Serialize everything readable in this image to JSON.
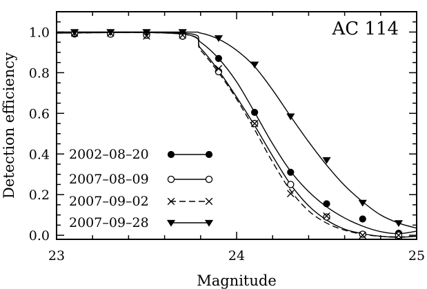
{
  "chart_data": {
    "type": "line",
    "title": "",
    "annotation": "AC 114",
    "xlabel": "Magnitude",
    "ylabel": "Detection efficiency",
    "xlim": [
      23,
      25
    ],
    "ylim": [
      -0.02,
      1.1
    ],
    "xticks": [
      23,
      24,
      25
    ],
    "xtick_labels": [
      "23",
      "24",
      "25"
    ],
    "yticks": [
      0.0,
      0.2,
      0.4,
      0.6,
      0.8,
      1.0
    ],
    "ytick_labels": [
      "0.0",
      "0.2",
      "0.4",
      "0.6",
      "0.8",
      "1.0"
    ],
    "legend_position": "bottom-left",
    "series": [
      {
        "name": "2002–08–20",
        "marker": "filled-circle",
        "dash": "solid",
        "points": [
          [
            23.1,
            0.99
          ],
          [
            23.3,
            0.99
          ],
          [
            23.5,
            0.99
          ],
          [
            23.7,
            0.99
          ],
          [
            23.9,
            0.87
          ],
          [
            24.1,
            0.605
          ],
          [
            24.3,
            0.31
          ],
          [
            24.5,
            0.155
          ],
          [
            24.7,
            0.08
          ],
          [
            24.9,
            0.01
          ]
        ],
        "curve": [
          [
            23.0,
            0.995
          ],
          [
            23.7,
            0.995
          ],
          [
            23.8,
            0.95
          ],
          [
            23.9,
            0.87
          ],
          [
            24.0,
            0.755
          ],
          [
            24.1,
            0.605
          ],
          [
            24.2,
            0.45
          ],
          [
            24.3,
            0.315
          ],
          [
            24.4,
            0.215
          ],
          [
            24.5,
            0.14
          ],
          [
            24.6,
            0.085
          ],
          [
            24.7,
            0.045
          ],
          [
            24.8,
            0.018
          ],
          [
            24.9,
            0.008
          ],
          [
            25.0,
            0.02
          ]
        ]
      },
      {
        "name": "2007–08–09",
        "marker": "open-circle",
        "dash": "solid",
        "points": [
          [
            23.1,
            0.995
          ],
          [
            23.3,
            0.99
          ],
          [
            23.5,
            0.985
          ],
          [
            23.7,
            0.98
          ],
          [
            23.9,
            0.805
          ],
          [
            24.1,
            0.55
          ],
          [
            24.3,
            0.25
          ],
          [
            24.5,
            0.09
          ],
          [
            24.7,
            0.005
          ],
          [
            24.9,
            0.0
          ]
        ],
        "curve": [
          [
            23.0,
            1.0
          ],
          [
            23.7,
            0.99
          ],
          [
            23.8,
            0.92
          ],
          [
            23.9,
            0.81
          ],
          [
            24.0,
            0.68
          ],
          [
            24.1,
            0.54
          ],
          [
            24.2,
            0.39
          ],
          [
            24.3,
            0.25
          ],
          [
            24.4,
            0.145
          ],
          [
            24.5,
            0.075
          ],
          [
            24.6,
            0.03
          ],
          [
            24.7,
            0.008
          ],
          [
            24.8,
            -0.005
          ],
          [
            24.9,
            -0.01
          ],
          [
            25.0,
            -0.005
          ]
        ]
      },
      {
        "name": "2007–09–02",
        "marker": "cross",
        "dash": "dashed",
        "points": [
          [
            23.1,
            0.995
          ],
          [
            23.3,
            0.995
          ],
          [
            23.5,
            0.98
          ],
          [
            23.7,
            0.985
          ],
          [
            23.9,
            0.82
          ],
          [
            24.1,
            0.55
          ],
          [
            24.3,
            0.205
          ],
          [
            24.5,
            0.095
          ],
          [
            24.7,
            0.0
          ],
          [
            24.9,
            0.0
          ]
        ],
        "curve": [
          [
            23.0,
            0.995
          ],
          [
            23.7,
            0.99
          ],
          [
            23.8,
            0.91
          ],
          [
            23.9,
            0.8
          ],
          [
            24.0,
            0.67
          ],
          [
            24.1,
            0.52
          ],
          [
            24.2,
            0.36
          ],
          [
            24.3,
            0.22
          ],
          [
            24.4,
            0.12
          ],
          [
            24.5,
            0.06
          ],
          [
            24.6,
            0.025
          ],
          [
            24.7,
            0.005
          ],
          [
            24.8,
            -0.005
          ],
          [
            24.9,
            -0.008
          ],
          [
            25.0,
            -0.005
          ]
        ]
      },
      {
        "name": "2007–09–28",
        "marker": "filled-triangle-down",
        "dash": "solid",
        "points": [
          [
            23.1,
            1.0
          ],
          [
            23.3,
            1.0
          ],
          [
            23.5,
            1.0
          ],
          [
            23.7,
            1.0
          ],
          [
            23.9,
            0.97
          ],
          [
            24.1,
            0.84
          ],
          [
            24.3,
            0.585
          ],
          [
            24.5,
            0.37
          ],
          [
            24.7,
            0.16
          ],
          [
            24.9,
            0.06
          ]
        ],
        "curve": [
          [
            23.0,
            1.0
          ],
          [
            23.7,
            1.0
          ],
          [
            23.8,
            0.995
          ],
          [
            23.9,
            0.965
          ],
          [
            24.0,
            0.91
          ],
          [
            24.1,
            0.83
          ],
          [
            24.2,
            0.715
          ],
          [
            24.3,
            0.585
          ],
          [
            24.4,
            0.46
          ],
          [
            24.5,
            0.345
          ],
          [
            24.6,
            0.245
          ],
          [
            24.7,
            0.165
          ],
          [
            24.8,
            0.1
          ],
          [
            24.9,
            0.06
          ],
          [
            25.0,
            0.035
          ]
        ]
      }
    ]
  }
}
